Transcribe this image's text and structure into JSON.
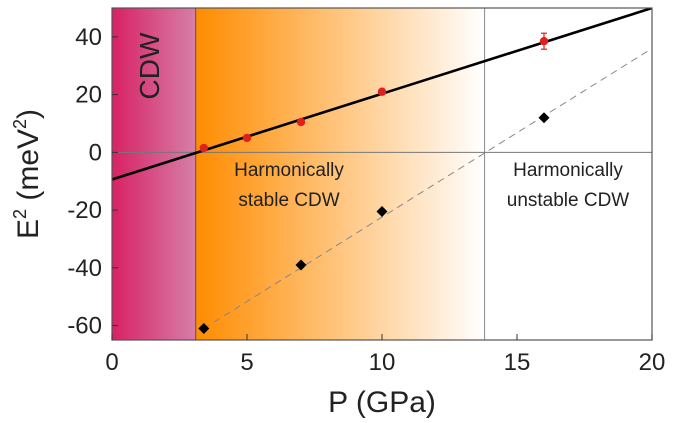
{
  "chart_data": {
    "type": "scatter",
    "title": "",
    "xlabel": "P (GPa)",
    "ylabel_base": "E",
    "ylabel_exp": "2",
    "ylabel_unit_open": " (meV",
    "ylabel_unit_exp": "2",
    "ylabel_unit_close": ")",
    "xlim": [
      0,
      20
    ],
    "ylim": [
      -65,
      50
    ],
    "x_ticks": [
      0,
      5,
      10,
      15,
      20
    ],
    "y_ticks": [
      -60,
      -40,
      -20,
      0,
      20,
      40
    ],
    "regions": [
      {
        "label": "CDW",
        "x_from": -0.2,
        "x_to": 3.1,
        "colors": [
          "#d81b60",
          "#d67fa8"
        ]
      },
      {
        "label_lines": [
          "Harmonically",
          "stable CDW"
        ],
        "x_from": 3.1,
        "x_to": 13.8,
        "colors": [
          "#ff8c00",
          "#ffffff"
        ]
      },
      {
        "label_lines": [
          "Harmonically",
          "unstable CDW"
        ],
        "x_from": 13.8,
        "x_to": 20
      }
    ],
    "series": [
      {
        "marker": "circle",
        "color": "#e0201c",
        "points": [
          {
            "x": 3.4,
            "y": 1.5
          },
          {
            "x": 5.0,
            "y": 5
          },
          {
            "x": 7.0,
            "y": 10.5
          },
          {
            "x": 10.0,
            "y": 21
          },
          {
            "x": 16.0,
            "y": 38.5
          }
        ],
        "fit": {
          "x0": -0.2,
          "y0": -10,
          "x1": 20,
          "y1": 50,
          "style": "solid",
          "color": "#000000"
        }
      },
      {
        "marker": "diamond",
        "color": "#000000",
        "points": [
          {
            "x": 3.4,
            "y": -61
          },
          {
            "x": 7.0,
            "y": -39
          },
          {
            "x": 10.0,
            "y": -20.5
          },
          {
            "x": 16.0,
            "y": 12
          }
        ],
        "fit": {
          "x0": 3.4,
          "y0": -61,
          "x1": 20,
          "y1": 36,
          "style": "dashed",
          "color": "#888888"
        }
      }
    ],
    "grid": false,
    "zero_line": true
  }
}
